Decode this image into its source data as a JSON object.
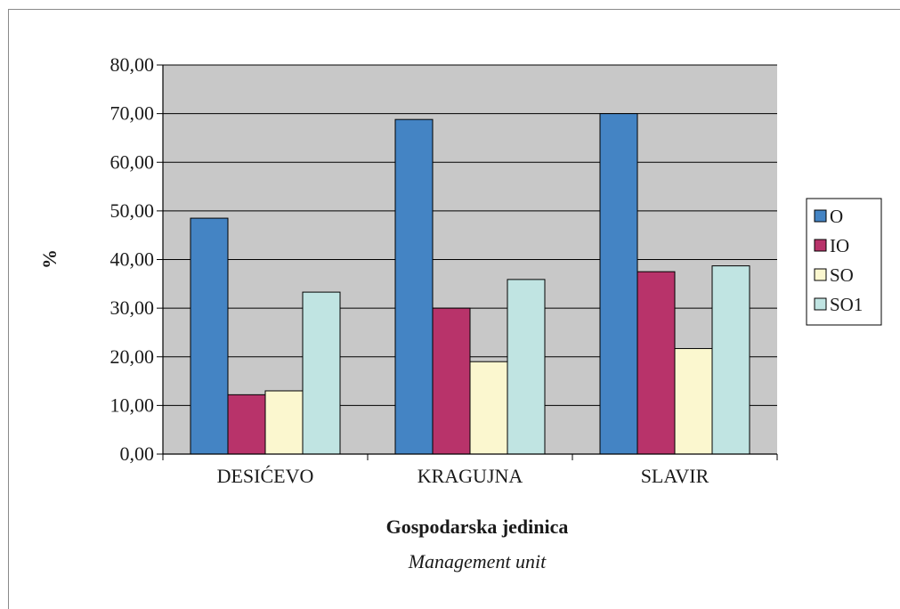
{
  "chart_data": {
    "type": "bar",
    "categories": [
      "DESIĆEVO",
      "KRAGUJNA",
      "SLAVIR"
    ],
    "series": [
      {
        "name": "O",
        "color": "#4484c4",
        "values": [
          48.5,
          68.8,
          70.0
        ]
      },
      {
        "name": "IO",
        "color": "#b8336a",
        "values": [
          12.2,
          30.0,
          37.5
        ]
      },
      {
        "name": "SO",
        "color": "#fbf7cf",
        "values": [
          13.0,
          19.0,
          21.7
        ]
      },
      {
        "name": "SO1",
        "color": "#c0e4e2",
        "values": [
          33.3,
          35.9,
          38.7
        ]
      }
    ],
    "ylabel": "%",
    "xlabel": "Gospodarska jedinica",
    "xlabel_secondary": "Management unit",
    "ylim": [
      0,
      80
    ],
    "yticks": [
      "0,00",
      "10,00",
      "20,00",
      "30,00",
      "40,00",
      "50,00",
      "60,00",
      "70,00",
      "80,00"
    ],
    "grid": true,
    "plot_background": "#c8c8c8",
    "legend_position": "right"
  }
}
